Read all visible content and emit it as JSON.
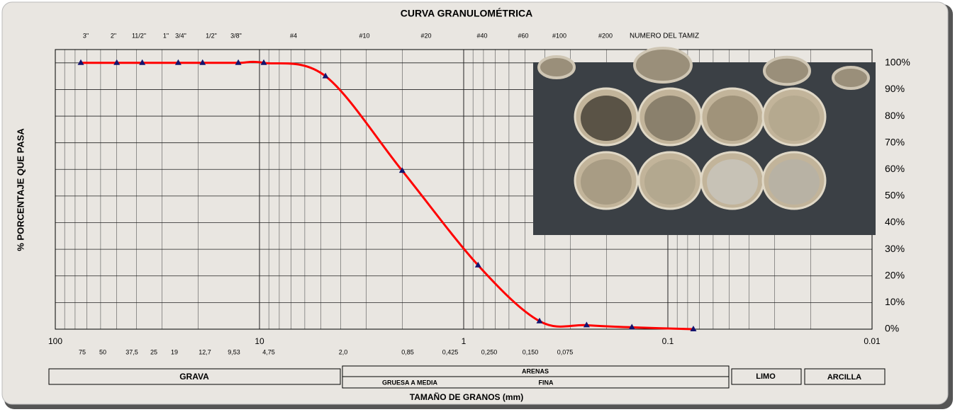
{
  "chart_data": {
    "type": "line",
    "title": "CURVA GRANULOMÉTRICA",
    "x_label": "TAMAÑO DE GRANOS (mm)",
    "y_label": "% PORCENTAJE QUE PASA",
    "xscale": "log",
    "xlim": [
      100,
      0.01
    ],
    "xticks": [
      100,
      10,
      1,
      0.1,
      0.01
    ],
    "ylim": [
      0,
      105
    ],
    "yticks": [
      {
        "value": 0,
        "label": "0%"
      },
      {
        "value": 10,
        "label": "10%"
      },
      {
        "value": 20,
        "label": "20%"
      },
      {
        "value": 30,
        "label": "30%"
      },
      {
        "value": 40,
        "label": "40%"
      },
      {
        "value": 50,
        "label": "50%"
      },
      {
        "value": 60,
        "label": "60%"
      },
      {
        "value": 70,
        "label": "70%"
      },
      {
        "value": 80,
        "label": "80%"
      },
      {
        "value": 90,
        "label": "90%"
      },
      {
        "value": 100,
        "label": "100%"
      }
    ],
    "grid": true,
    "x": [
      75,
      50,
      37.5,
      25,
      19,
      12.7,
      9.53,
      4.75,
      2.0,
      0.85,
      0.425,
      0.25,
      0.15,
      0.075
    ],
    "x_labels": [
      "75",
      "50",
      "37,5",
      "25",
      "19",
      "12,7",
      "9,53",
      "4,75",
      "2,0",
      "0,85",
      "0,425",
      "0,250",
      "0,150",
      "0,075"
    ],
    "sieve_labels": [
      "3\"",
      "2\"",
      "11/2\"",
      "1\"",
      "3/4\"",
      "1/2\"",
      "3/8\"",
      "#4",
      "#10",
      "#20",
      "#40",
      "#60",
      "#100",
      "#200"
    ],
    "sieve_header": "NUMERO DEL TAMIZ",
    "series": [
      {
        "color": "#ff0000",
        "marker_color": "#14146e",
        "values": [
          100,
          100,
          100,
          100,
          100,
          100,
          100,
          95,
          59.5,
          24,
          3,
          1.5,
          0.7,
          0
        ]
      }
    ],
    "soil_classes": [
      "GRAVA",
      "ARENAS",
      "LIMO",
      "ARCILLA"
    ],
    "sand_subclasses": [
      "GRUESA A MEDIA",
      "FINA"
    ]
  }
}
